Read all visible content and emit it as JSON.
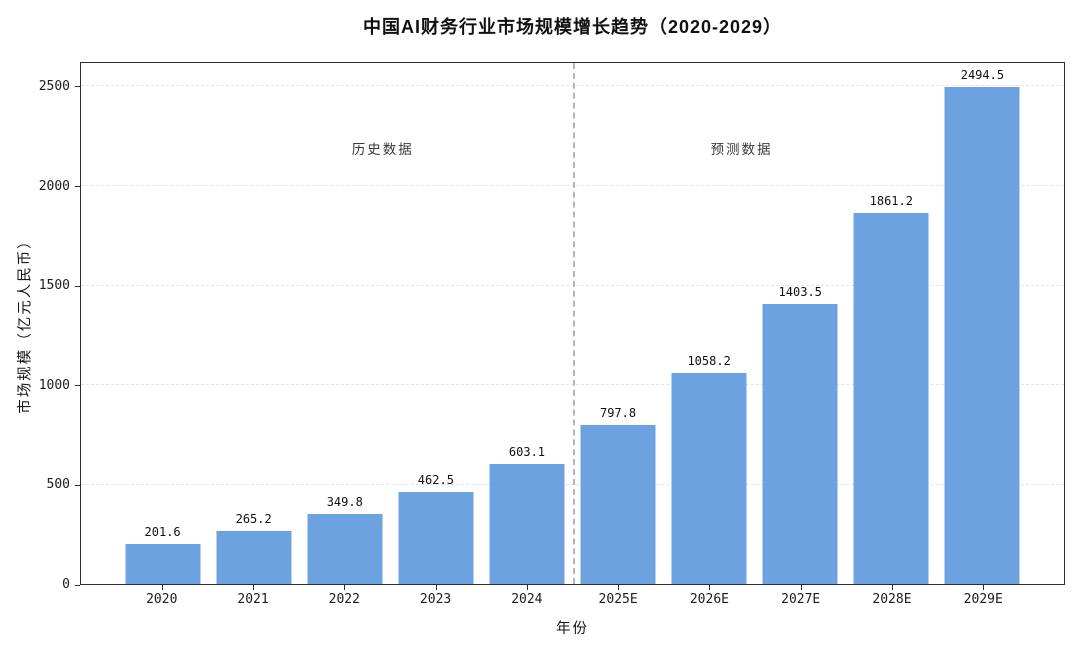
{
  "chart_data": {
    "type": "bar",
    "title": "中国AI财务行业市场规模增长趋势（2020-2029）",
    "xlabel": "年份",
    "ylabel": "市场规模（亿元人民币）",
    "categories": [
      "2020",
      "2021",
      "2022",
      "2023",
      "2024",
      "2025E",
      "2026E",
      "2027E",
      "2028E",
      "2029E"
    ],
    "values": [
      201.6,
      265.2,
      349.8,
      462.5,
      603.1,
      797.8,
      1058.2,
      1403.5,
      1861.2,
      2494.5
    ],
    "value_labels": [
      "201.6",
      "265.2",
      "349.8",
      "462.5",
      "603.1",
      "797.8",
      "1058.2",
      "1403.5",
      "1861.2",
      "2494.5"
    ],
    "ylim": [
      0,
      2625
    ],
    "yticks": [
      0,
      500,
      1000,
      1500,
      2000,
      2500
    ],
    "grid": true,
    "legend": null,
    "bar_color": "#6CA2E0",
    "annotations": [
      {
        "label": "历史数据",
        "x_frac": 0.307,
        "y_value": 2200
      },
      {
        "label": "预测数据",
        "x_frac": 0.672,
        "y_value": 2200
      }
    ],
    "separator": {
      "x_index": 4.5,
      "color": "#b5b5b5"
    },
    "x_pad_frac": 0.083
  }
}
